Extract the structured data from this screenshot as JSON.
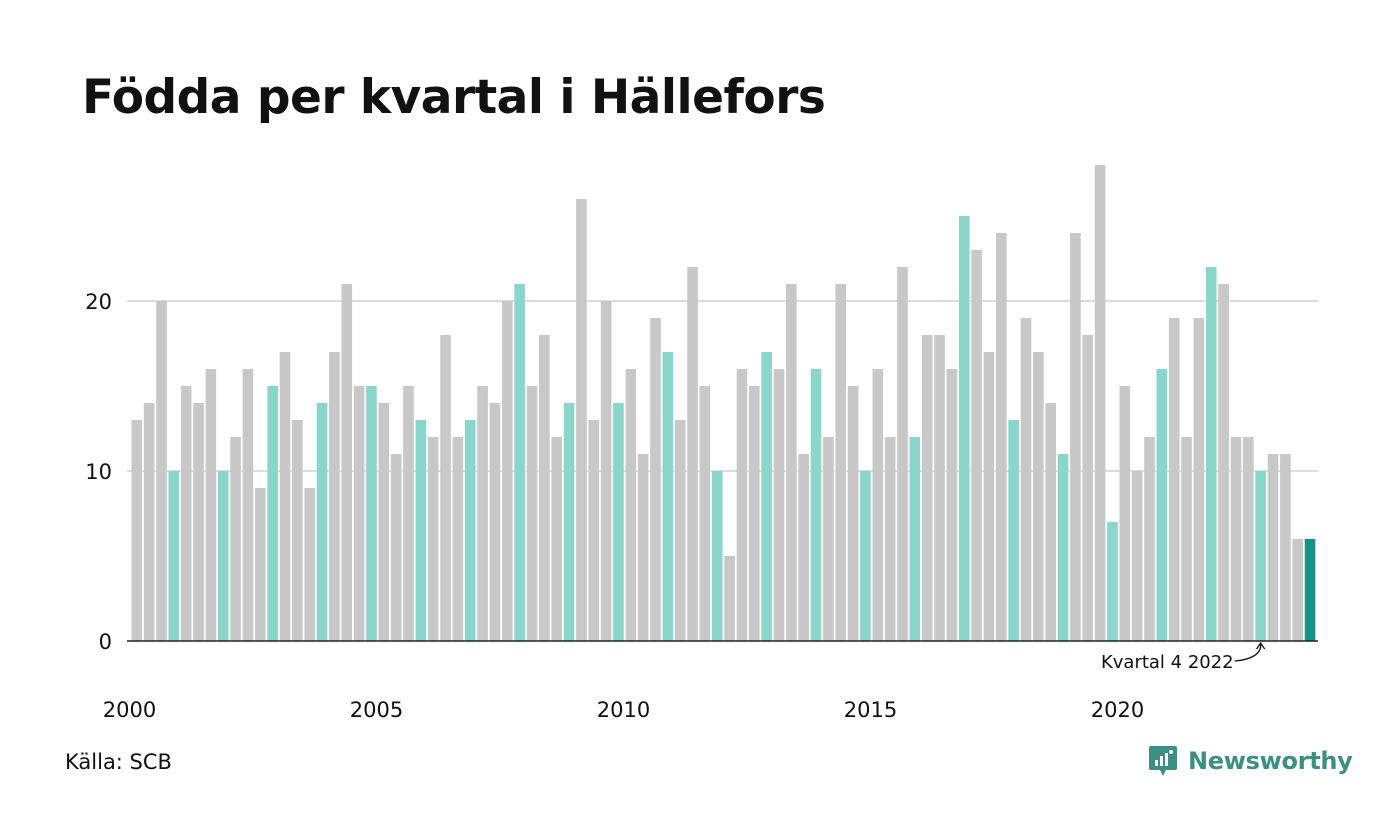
{
  "title": "Födda per kvartal i Hällefors",
  "source": "Källa: SCB",
  "brand": "Newsworthy",
  "colors": {
    "default": "#c8c8c8",
    "q4": "#8ad5cc",
    "latest": "#159486",
    "grid": "#dcdcdc",
    "axis": "#222222",
    "brand": "#3d8f84"
  },
  "icons": {
    "brand": "newsworthy-logo-icon",
    "annotation": "curved-arrow-icon"
  },
  "chart_data": {
    "type": "bar",
    "title": "Födda per kvartal i Hällefors",
    "xlabel": "",
    "ylabel": "",
    "ylim": [
      0,
      28
    ],
    "grid": true,
    "yticks": [
      0,
      10,
      20
    ],
    "xtick_labels": [
      "2000",
      "2005",
      "2010",
      "2015",
      "2020"
    ],
    "start_year": 2000,
    "values": [
      13,
      14,
      20,
      10,
      15,
      14,
      16,
      10,
      12,
      16,
      9,
      15,
      17,
      13,
      9,
      14,
      17,
      21,
      15,
      15,
      14,
      11,
      15,
      13,
      12,
      18,
      12,
      13,
      15,
      14,
      20,
      21,
      15,
      18,
      12,
      14,
      26,
      13,
      20,
      14,
      16,
      11,
      19,
      17,
      13,
      22,
      15,
      10,
      5,
      16,
      15,
      17,
      16,
      21,
      11,
      16,
      12,
      21,
      15,
      10,
      16,
      12,
      22,
      12,
      18,
      18,
      16,
      25,
      23,
      17,
      24,
      13,
      19,
      17,
      14,
      11,
      24,
      18,
      28,
      7,
      15,
      10,
      12,
      16,
      19,
      12,
      19,
      22,
      21,
      12,
      12,
      10,
      11,
      11,
      6,
      6
    ],
    "annotation": {
      "text": "Kvartal 4 2022",
      "year": 2022,
      "quarter": 4
    }
  }
}
